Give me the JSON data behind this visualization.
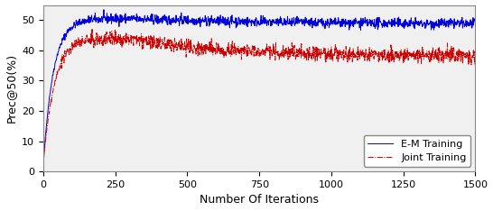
{
  "xlabel": "Number Of Iterations",
  "ylabel": "Prec@50(%)",
  "xlim": [
    0,
    1500
  ],
  "ylim": [
    0,
    55
  ],
  "yticks": [
    0,
    10,
    20,
    30,
    40,
    50
  ],
  "xticks": [
    0,
    250,
    500,
    750,
    1000,
    1250,
    1500
  ],
  "em_color": "#0000dd",
  "joint_color": "#cc0000",
  "em_label": "E-M Training",
  "joint_label": "Joint Training",
  "em_linewidth": 0.7,
  "joint_linewidth": 0.7,
  "background_color": "#ffffff",
  "axes_facecolor": "#f0f0f0",
  "legend_loc": "lower right",
  "seed": 42,
  "n_points": 1500,
  "em_start": 2.5,
  "em_peak": 50.5,
  "em_peak_x": 300,
  "em_end": 48.5,
  "joint_start": 2.5,
  "joint_peak": 44.0,
  "joint_peak_x": 280,
  "joint_end": 38.0,
  "em_noise_scale": 0.8,
  "joint_noise_scale": 1.2,
  "em_tau": 35,
  "joint_tau": 38
}
